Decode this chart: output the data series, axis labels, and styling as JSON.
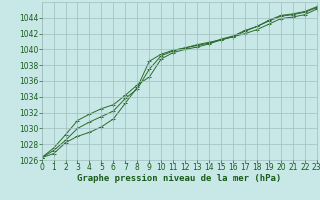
{
  "xlabel": "Graphe pression niveau de la mer (hPa)",
  "x": [
    0,
    1,
    2,
    3,
    4,
    5,
    6,
    7,
    8,
    9,
    10,
    11,
    12,
    13,
    14,
    15,
    16,
    17,
    18,
    19,
    20,
    21,
    22,
    23
  ],
  "line1": [
    1026.3,
    1026.8,
    1028.2,
    1029.0,
    1029.5,
    1030.2,
    1031.2,
    1033.2,
    1035.2,
    1038.5,
    1039.4,
    1039.9,
    1040.2,
    1040.6,
    1040.9,
    1041.2,
    1041.6,
    1042.0,
    1042.5,
    1043.2,
    1043.9,
    1044.1,
    1044.4,
    1045.1
  ],
  "line2": [
    1026.3,
    1027.5,
    1029.2,
    1031.0,
    1031.8,
    1032.5,
    1033.0,
    1034.2,
    1035.5,
    1036.5,
    1038.8,
    1039.6,
    1040.0,
    1040.3,
    1040.7,
    1041.2,
    1041.6,
    1042.3,
    1042.9,
    1043.6,
    1044.2,
    1044.4,
    1044.7,
    1045.3
  ],
  "line3": [
    1026.3,
    1027.2,
    1028.5,
    1030.0,
    1030.8,
    1031.5,
    1032.2,
    1033.8,
    1035.0,
    1037.5,
    1039.2,
    1039.8,
    1040.2,
    1040.5,
    1040.8,
    1041.3,
    1041.7,
    1042.4,
    1042.9,
    1043.7,
    1044.3,
    1044.5,
    1044.8,
    1045.4
  ],
  "ylim": [
    1026,
    1046
  ],
  "xlim": [
    0,
    23
  ],
  "yticks": [
    1026,
    1028,
    1030,
    1032,
    1034,
    1036,
    1038,
    1040,
    1042,
    1044
  ],
  "xticks": [
    0,
    1,
    2,
    3,
    4,
    5,
    6,
    7,
    8,
    9,
    10,
    11,
    12,
    13,
    14,
    15,
    16,
    17,
    18,
    19,
    20,
    21,
    22,
    23
  ],
  "line_color": "#2d6a2d",
  "marker_color": "#2d6a2d",
  "bg_color": "#c8e8e8",
  "grid_color": "#a0bebe",
  "text_color": "#1a5c1a",
  "label_color": "#1a5c1a",
  "tick_fontsize": 5.5,
  "label_fontsize": 6.5,
  "fig_width": 3.2,
  "fig_height": 2.0,
  "dpi": 100
}
